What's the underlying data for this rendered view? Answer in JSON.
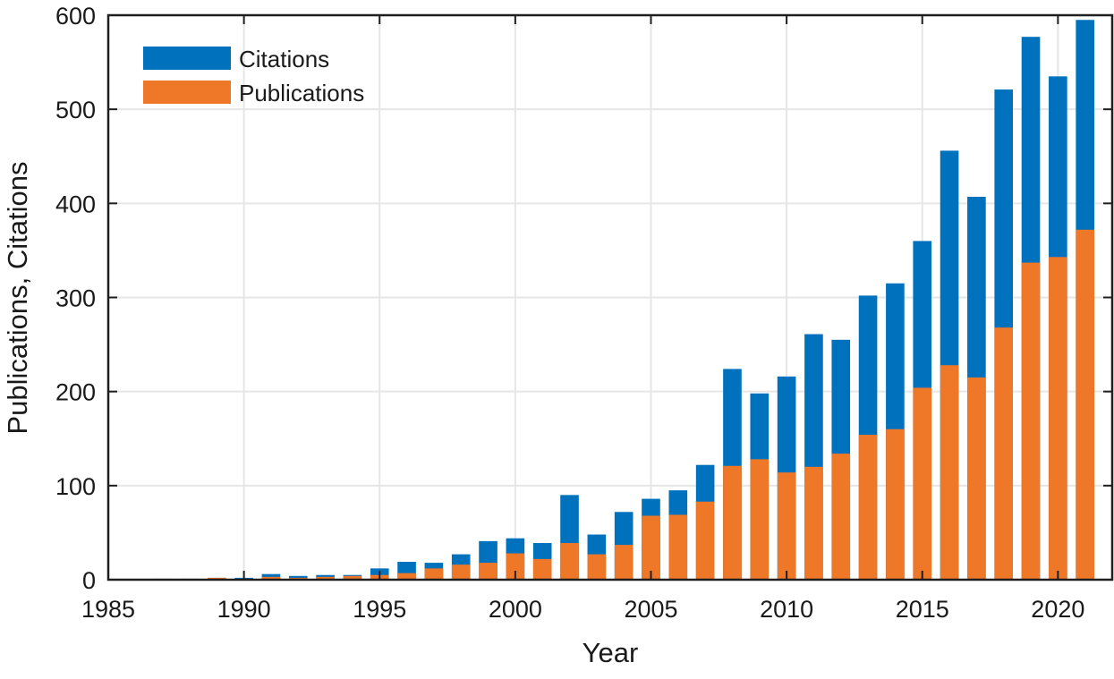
{
  "chart_data": {
    "type": "bar",
    "title": "",
    "xlabel": "Year",
    "ylabel": "Publications, Citations",
    "xlim": [
      1985,
      2022
    ],
    "ylim": [
      0,
      600
    ],
    "xticks": [
      1985,
      1990,
      1995,
      2000,
      2005,
      2010,
      2015,
      2020
    ],
    "yticks": [
      0,
      100,
      200,
      300,
      400,
      500,
      600
    ],
    "grid": true,
    "legend_position": "top-left",
    "categories": [
      1986,
      1987,
      1988,
      1989,
      1990,
      1991,
      1992,
      1993,
      1994,
      1995,
      1996,
      1997,
      1998,
      1999,
      2000,
      2001,
      2002,
      2003,
      2004,
      2005,
      2006,
      2007,
      2008,
      2009,
      2010,
      2011,
      2012,
      2013,
      2014,
      2015,
      2016,
      2017,
      2018,
      2019,
      2020,
      2021
    ],
    "series": [
      {
        "name": "Citations",
        "color": "#0072bd",
        "values": [
          0,
          1,
          1,
          2,
          2,
          6,
          4,
          5,
          5,
          12,
          19,
          18,
          27,
          41,
          44,
          39,
          90,
          48,
          72,
          86,
          95,
          122,
          224,
          198,
          216,
          261,
          255,
          302,
          315,
          360,
          456,
          407,
          521,
          577,
          535,
          595
        ]
      },
      {
        "name": "Publications",
        "color": "#ee7728",
        "values": [
          0,
          1,
          1,
          2,
          1,
          3,
          2,
          3,
          4,
          5,
          7,
          12,
          16,
          18,
          28,
          22,
          39,
          27,
          37,
          68,
          69,
          83,
          121,
          128,
          114,
          120,
          134,
          154,
          160,
          204,
          228,
          215,
          268,
          337,
          343,
          372
        ]
      }
    ]
  }
}
